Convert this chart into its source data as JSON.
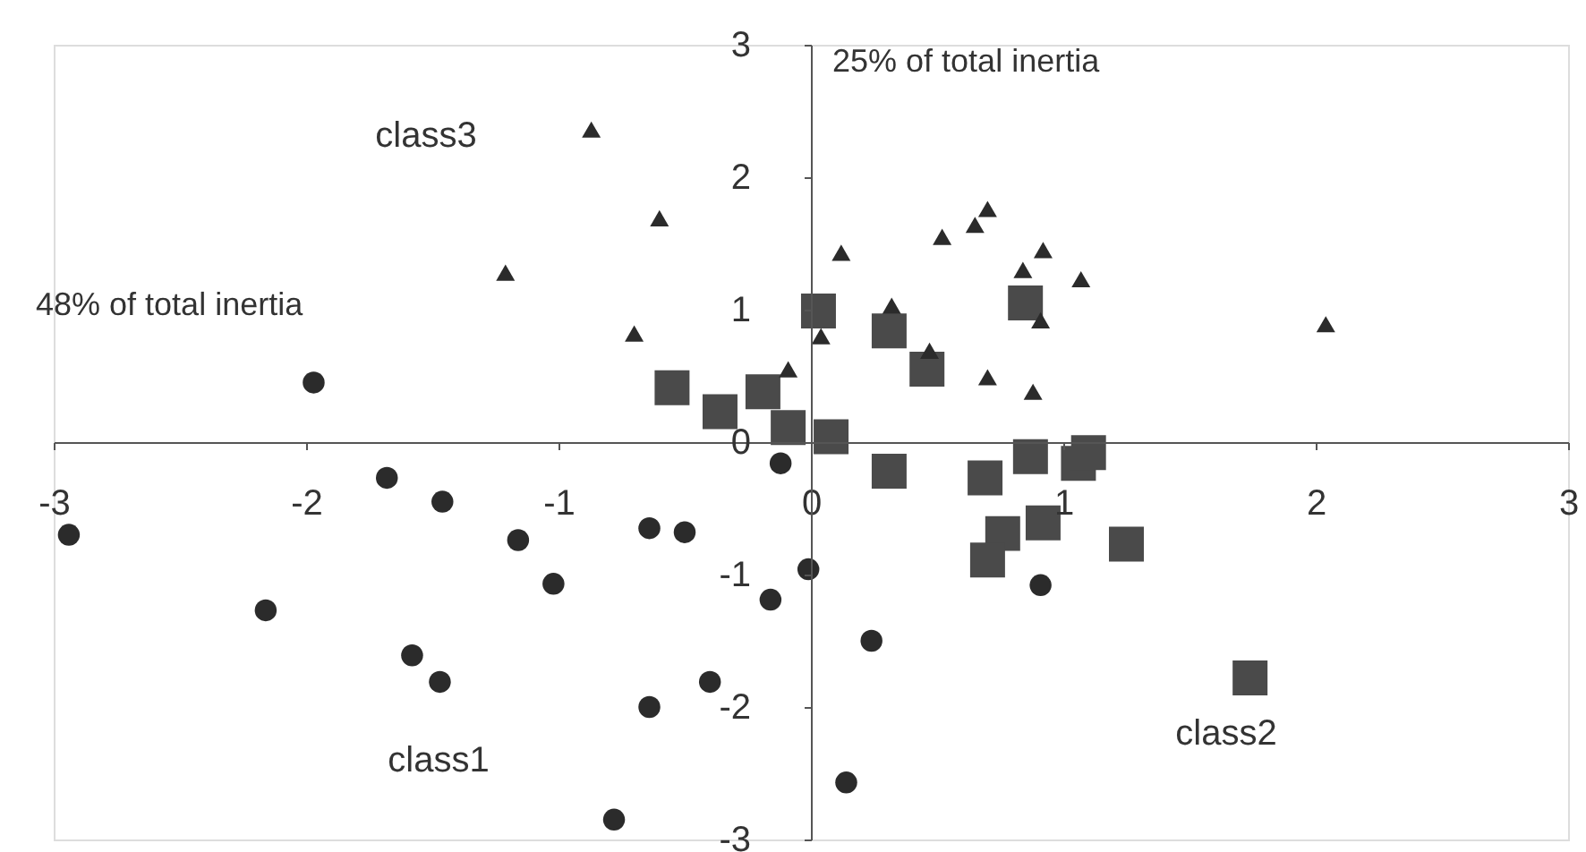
{
  "chart_data": {
    "type": "scatter",
    "xlabel": "48% of total inertia",
    "ylabel": "25% of total inertia",
    "xlim": [
      -3,
      3
    ],
    "ylim": [
      -3,
      3
    ],
    "xticks": [
      -3,
      -2,
      -1,
      0,
      1,
      2,
      3
    ],
    "yticks": [
      -3,
      -2,
      -1,
      0,
      1,
      2,
      3
    ],
    "grid": false,
    "series": [
      {
        "marker": "circle",
        "color": "#2b2b2b",
        "x": [
          -2.94,
          -1.97,
          -1.68,
          -1.46,
          -1.16,
          -1.02,
          -2.16,
          -1.58,
          -1.47,
          -0.64,
          -0.5,
          -0.64,
          -0.4,
          -0.78,
          -0.16,
          -0.12,
          -0.01,
          0.24,
          0.14,
          0.91
        ],
        "values": [
          -0.7,
          0.45,
          -0.27,
          -0.45,
          -0.74,
          -1.07,
          -1.27,
          -1.61,
          -1.81,
          -0.65,
          -0.68,
          -2.0,
          -1.81,
          -2.85,
          -1.19,
          -0.16,
          -0.96,
          -1.5,
          -2.57,
          -1.08
        ]
      },
      {
        "marker": "square",
        "color": "#4a4a4a",
        "x": [
          -0.55,
          -0.36,
          -0.19,
          -0.09,
          0.03,
          0.08,
          0.31,
          0.31,
          0.46,
          0.69,
          0.87,
          1.06,
          1.1,
          0.76,
          0.92,
          0.7,
          1.25,
          1.74,
          0.85
        ],
        "values": [
          0.41,
          0.23,
          0.38,
          0.11,
          0.99,
          0.04,
          -0.22,
          0.84,
          0.55,
          -0.27,
          -0.11,
          -0.16,
          -0.08,
          -0.69,
          -0.61,
          -0.89,
          -0.77,
          -1.78,
          1.05
        ]
      },
      {
        "marker": "triangle",
        "color": "#2b2b2b",
        "x": [
          -0.87,
          -0.6,
          -1.21,
          -0.7,
          0.12,
          0.52,
          0.65,
          0.7,
          0.92,
          1.07,
          0.84,
          0.91,
          0.32,
          0.47,
          0.7,
          0.88,
          -0.09,
          0.04,
          2.04
        ],
        "values": [
          2.36,
          1.69,
          1.28,
          0.82,
          1.43,
          1.55,
          1.64,
          1.76,
          1.45,
          1.23,
          1.3,
          0.92,
          1.03,
          0.69,
          0.49,
          0.38,
          0.55,
          0.8,
          0.89
        ]
      }
    ],
    "annotations": [
      "class1",
      "class2",
      "class3"
    ]
  }
}
